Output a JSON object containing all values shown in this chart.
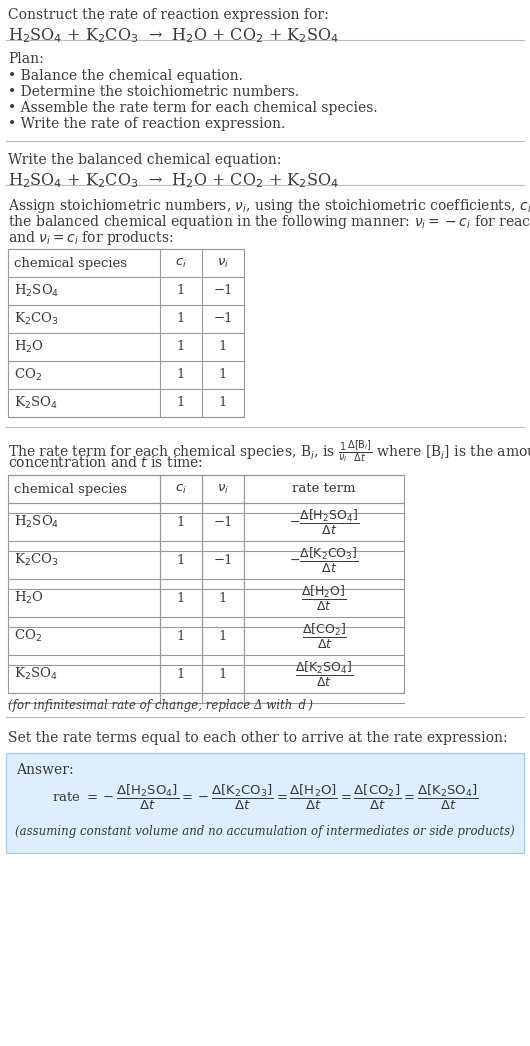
{
  "bg_color": "#ffffff",
  "text_color": "#3a3a3a",
  "title_line1": "Construct the rate of reaction expression for:",
  "title_line2": "H$_2$SO$_4$ + K$_2$CO$_3$  →  H$_2$O + CO$_2$ + K$_2$SO$_4$",
  "section1_title": "Plan:",
  "section1_bullets": [
    "• Balance the chemical equation.",
    "• Determine the stoichiometric numbers.",
    "• Assemble the rate term for each chemical species.",
    "• Write the rate of reaction expression."
  ],
  "section2_title": "Write the balanced chemical equation:",
  "section2_eq": "H$_2$SO$_4$ + K$_2$CO$_3$  →  H$_2$O + CO$_2$ + K$_2$SO$_4$",
  "section3_intro_parts": [
    "Assign stoichiometric numbers, $\\nu_i$, using the stoichiometric coefficients, $c_i$, from",
    "the balanced chemical equation in the following manner: $\\nu_i = -c_i$ for reactants",
    "and $\\nu_i = c_i$ for products:"
  ],
  "table1_headers": [
    "chemical species",
    "$c_i$",
    "$\\nu_i$"
  ],
  "table1_rows": [
    [
      "H$_2$SO$_4$",
      "1",
      "−1"
    ],
    [
      "K$_2$CO$_3$",
      "1",
      "−1"
    ],
    [
      "H$_2$O",
      "1",
      "1"
    ],
    [
      "CO$_2$",
      "1",
      "1"
    ],
    [
      "K$_2$SO$_4$",
      "1",
      "1"
    ]
  ],
  "section4_intro_parts": [
    "The rate term for each chemical species, B$_i$, is $\\frac{1}{\\nu_i}\\frac{\\Delta[\\mathrm{B}_i]}{\\Delta t}$ where [B$_i$] is the amount",
    "concentration and $t$ is time:"
  ],
  "table2_headers": [
    "chemical species",
    "$c_i$",
    "$\\nu_i$",
    "rate term"
  ],
  "table2_rows": [
    [
      "H$_2$SO$_4$",
      "1",
      "−1",
      "$-\\dfrac{\\Delta[\\mathrm{H_2SO_4}]}{\\Delta t}$"
    ],
    [
      "K$_2$CO$_3$",
      "1",
      "−1",
      "$-\\dfrac{\\Delta[\\mathrm{K_2CO_3}]}{\\Delta t}$"
    ],
    [
      "H$_2$O",
      "1",
      "1",
      "$\\dfrac{\\Delta[\\mathrm{H_2O}]}{\\Delta t}$"
    ],
    [
      "CO$_2$",
      "1",
      "1",
      "$\\dfrac{\\Delta[\\mathrm{CO_2}]}{\\Delta t}$"
    ],
    [
      "K$_2$SO$_4$",
      "1",
      "1",
      "$\\dfrac{\\Delta[\\mathrm{K_2SO_4}]}{\\Delta t}$"
    ]
  ],
  "table2_footnote": "(for infinitesimal rate of change, replace Δ with  d )",
  "section5_intro": "Set the rate terms equal to each other to arrive at the rate expression:",
  "answer_label": "Answer:",
  "answer_eq": "rate $= -\\dfrac{\\Delta[\\mathrm{H_2SO_4}]}{\\Delta t} = -\\dfrac{\\Delta[\\mathrm{K_2CO_3}]}{\\Delta t} = \\dfrac{\\Delta[\\mathrm{H_2O}]}{\\Delta t} = \\dfrac{\\Delta[\\mathrm{CO_2}]}{\\Delta t} = \\dfrac{\\Delta[\\mathrm{K_2SO_4}]}{\\Delta t}$",
  "answer_footnote": "(assuming constant volume and no accumulation of intermediates or side products)",
  "answer_bg": "#ddeeff",
  "line_color": "#bbbbbb",
  "table_line_color": "#999999"
}
